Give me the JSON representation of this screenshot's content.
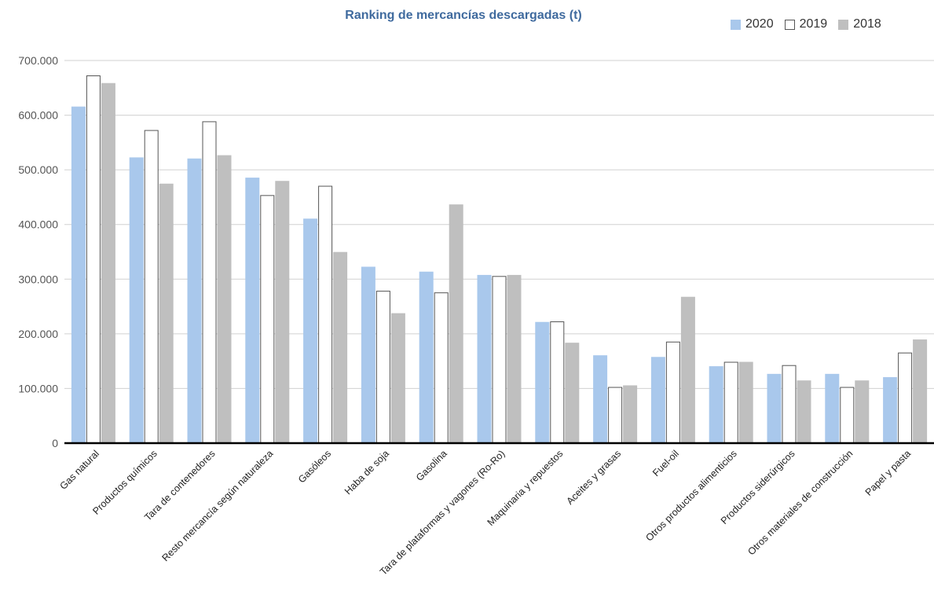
{
  "chart_data": {
    "type": "bar",
    "title": "Ranking de mercancías descargadas (t)",
    "xlabel": "",
    "ylabel": "",
    "ylim": [
      0,
      700000
    ],
    "yticks": [
      0,
      100000,
      200000,
      300000,
      400000,
      500000,
      600000,
      700000
    ],
    "ytick_labels": [
      "0",
      "100.000",
      "200.000",
      "300.000",
      "400.000",
      "500.000",
      "600.000",
      "700.000"
    ],
    "grid": true,
    "legend_position": "top-right",
    "categories": [
      "Gas natural",
      "Productos químicos",
      "Tara de contenedores",
      "Resto mercancía según naturaleza",
      "Gasóleos",
      "Haba de soja",
      "Gasolina",
      "Tara de plataformas y vagones (Ro-Ro)",
      "Maquinaria y repuestos",
      "Aceites y grasas",
      "Fuel-oil",
      "Otros productos alimenticios",
      "Productos siderúrgicos",
      "Otros materiales de construcción",
      "Papel y pasta"
    ],
    "series": [
      {
        "name": "2020",
        "color": "#a9c8ec",
        "stroke": "#a9c8ec",
        "values": [
          615000,
          522000,
          520000,
          485000,
          410000,
          322000,
          313000,
          307000,
          221000,
          160000,
          157000,
          140000,
          126000,
          126000,
          120000
        ]
      },
      {
        "name": "2019",
        "color": "#ffffff",
        "stroke": "#555555",
        "values": [
          672000,
          572000,
          588000,
          453000,
          470000,
          278000,
          275000,
          305000,
          222000,
          102000,
          185000,
          148000,
          142000,
          102000,
          165000
        ]
      },
      {
        "name": "2018",
        "color": "#bfbfbf",
        "stroke": "#bfbfbf",
        "values": [
          658000,
          474000,
          526000,
          479000,
          349000,
          237000,
          436000,
          307000,
          183000,
          105000,
          267000,
          148000,
          114000,
          114000,
          189000
        ]
      }
    ]
  }
}
